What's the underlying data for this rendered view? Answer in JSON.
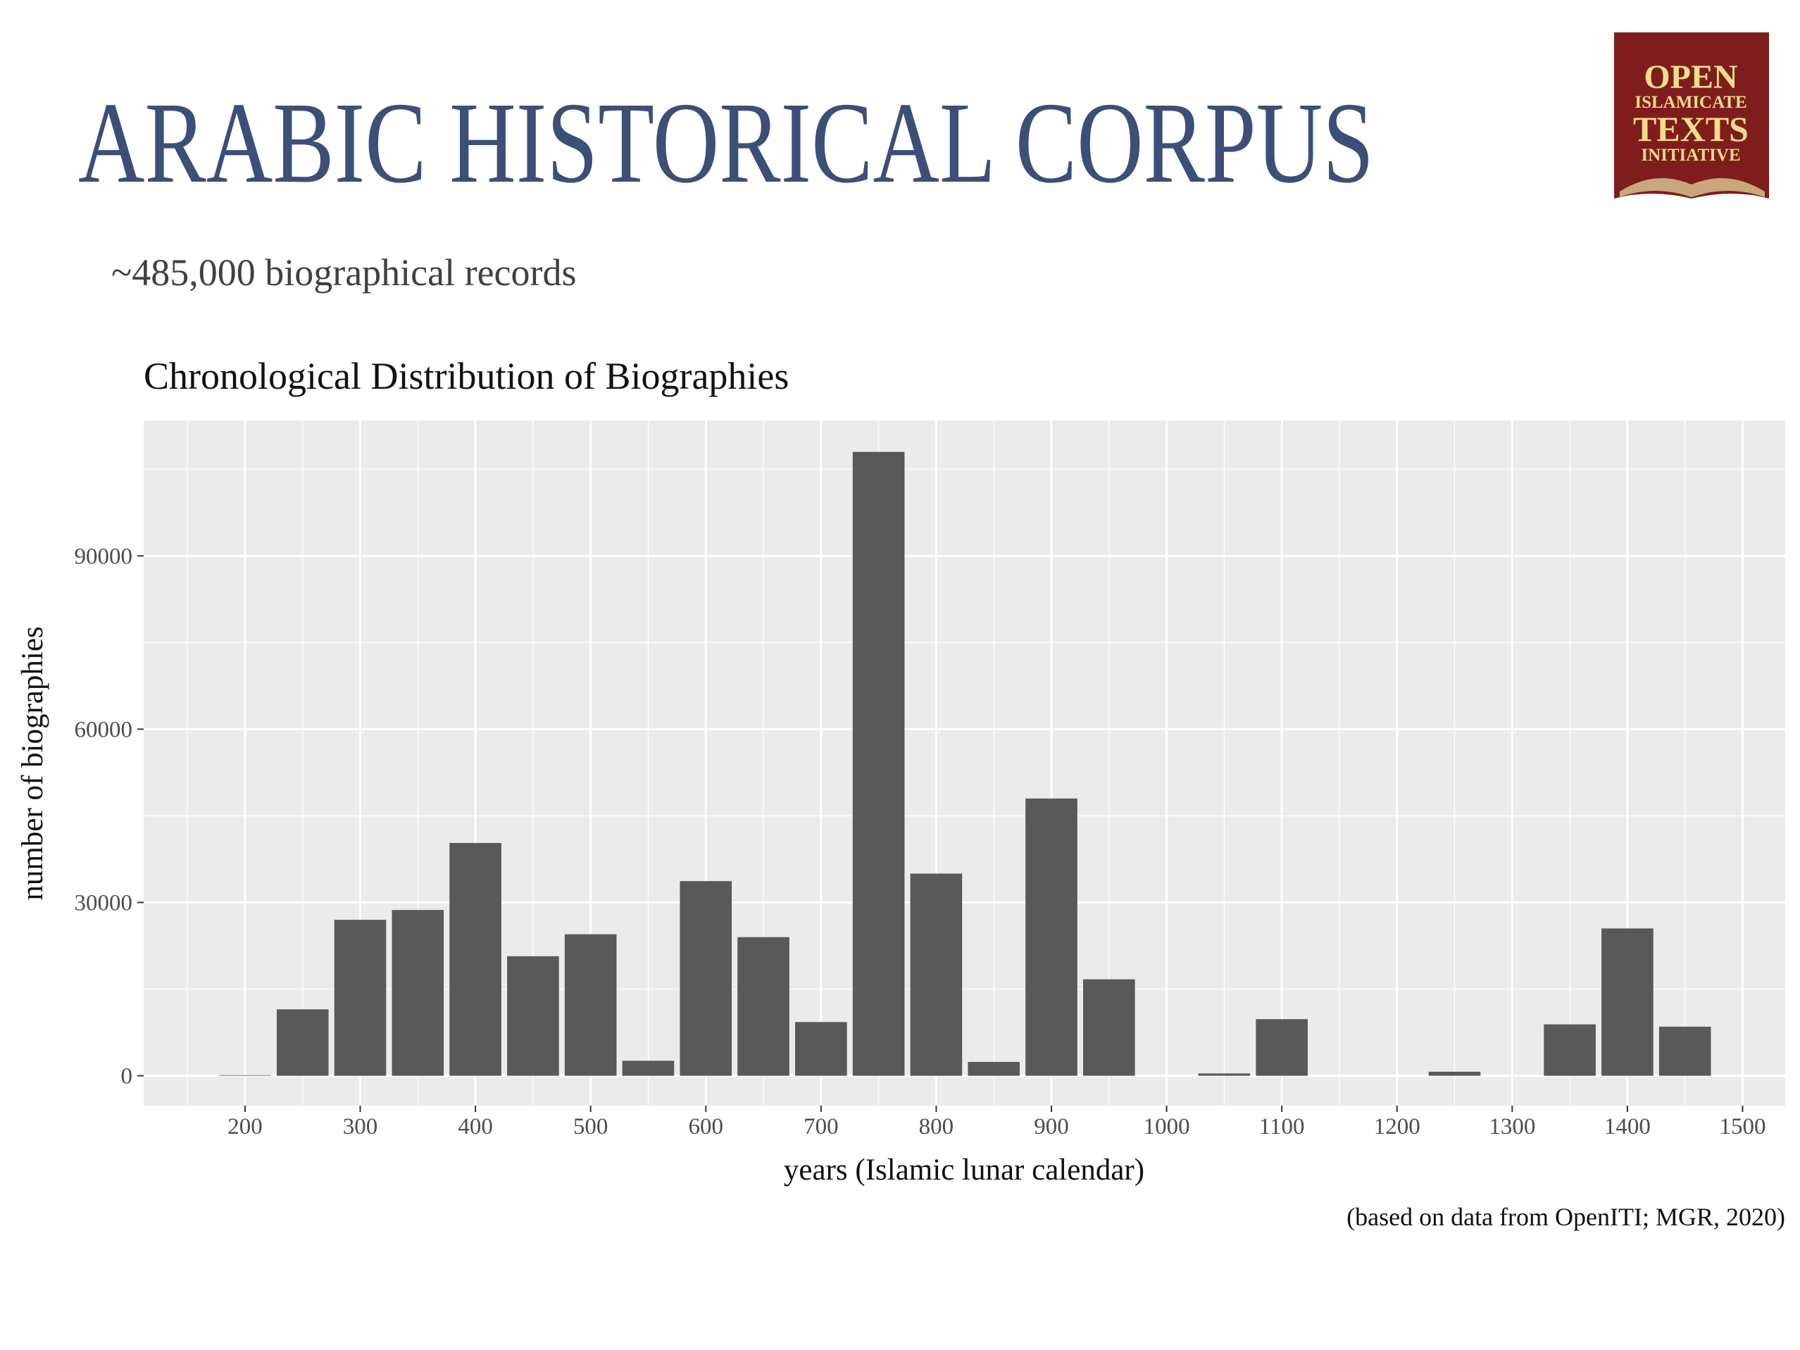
{
  "header": {
    "title": "ARABIC HISTORICAL CORPUS",
    "subtitle": "~485,000 biographical records"
  },
  "logo": {
    "lines": [
      "OPEN",
      "ISLAMICATE",
      "TEXTS",
      "INITIATIVE"
    ]
  },
  "chart_data": {
    "type": "bar",
    "title": "Chronological Distribution of Biographies",
    "x_label": "years (Islamic lunar calendar)",
    "y_label": "number of biographies",
    "caption": "(based on data from OpenITI; MGR, 2020)",
    "x": [
      200,
      250,
      300,
      350,
      400,
      450,
      500,
      550,
      600,
      650,
      700,
      750,
      800,
      850,
      900,
      950,
      1050,
      1100,
      1250,
      1350,
      1400,
      1450
    ],
    "values": [
      100,
      11500,
      27000,
      28700,
      40300,
      20700,
      24500,
      2600,
      33700,
      24000,
      9300,
      108000,
      35000,
      2400,
      48000,
      16700,
      400,
      9800,
      700,
      8900,
      25500,
      8500
    ],
    "color": "#595959",
    "xlim": [
      112,
      1537
    ],
    "xticks": [
      200,
      300,
      400,
      500,
      600,
      700,
      800,
      900,
      1000,
      1100,
      1200,
      1300,
      1400,
      1500
    ],
    "ylim": [
      -5170,
      113450
    ],
    "yticks": [
      0,
      30000,
      60000,
      90000
    ],
    "grid": true
  }
}
